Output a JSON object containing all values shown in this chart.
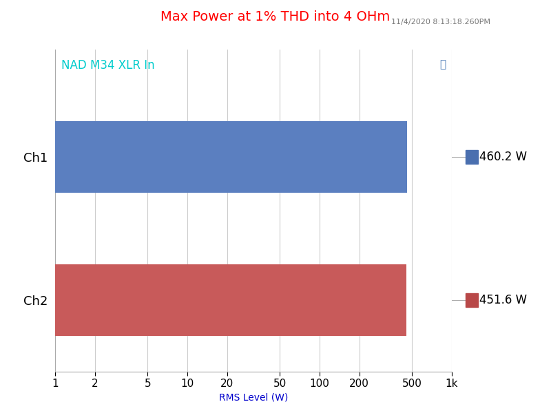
{
  "title": "Max Power at 1% THD into 4 OHm",
  "title_color": "#FF0000",
  "subtitle": "11/4/2020 8:13:18.260PM",
  "subtitle_color": "#777777",
  "device_label": "NAD M34 XLR In",
  "device_label_color": "#00CCCC",
  "channels": [
    "Ch1",
    "Ch2"
  ],
  "values": [
    460.2,
    451.6
  ],
  "bar_colors": [
    "#5B7FC0",
    "#C85A5A"
  ],
  "legend_colors": [
    "#4A6FAF",
    "#B84848"
  ],
  "legend_labels": [
    "460.2 W",
    "451.6 W"
  ],
  "xlabel": "RMS Level (W)",
  "xticks": [
    1,
    2,
    5,
    10,
    20,
    50,
    100,
    200,
    500,
    1000
  ],
  "xticklabels": [
    "1",
    "2",
    "5",
    "10",
    "20",
    "50",
    "100",
    "200",
    "500",
    "1k"
  ],
  "xlim_min": 1,
  "xlim_max": 1000,
  "background_color": "#FFFFFF",
  "grid_color": "#CCCCCC",
  "ap_logo_color": "#4A7AB5"
}
